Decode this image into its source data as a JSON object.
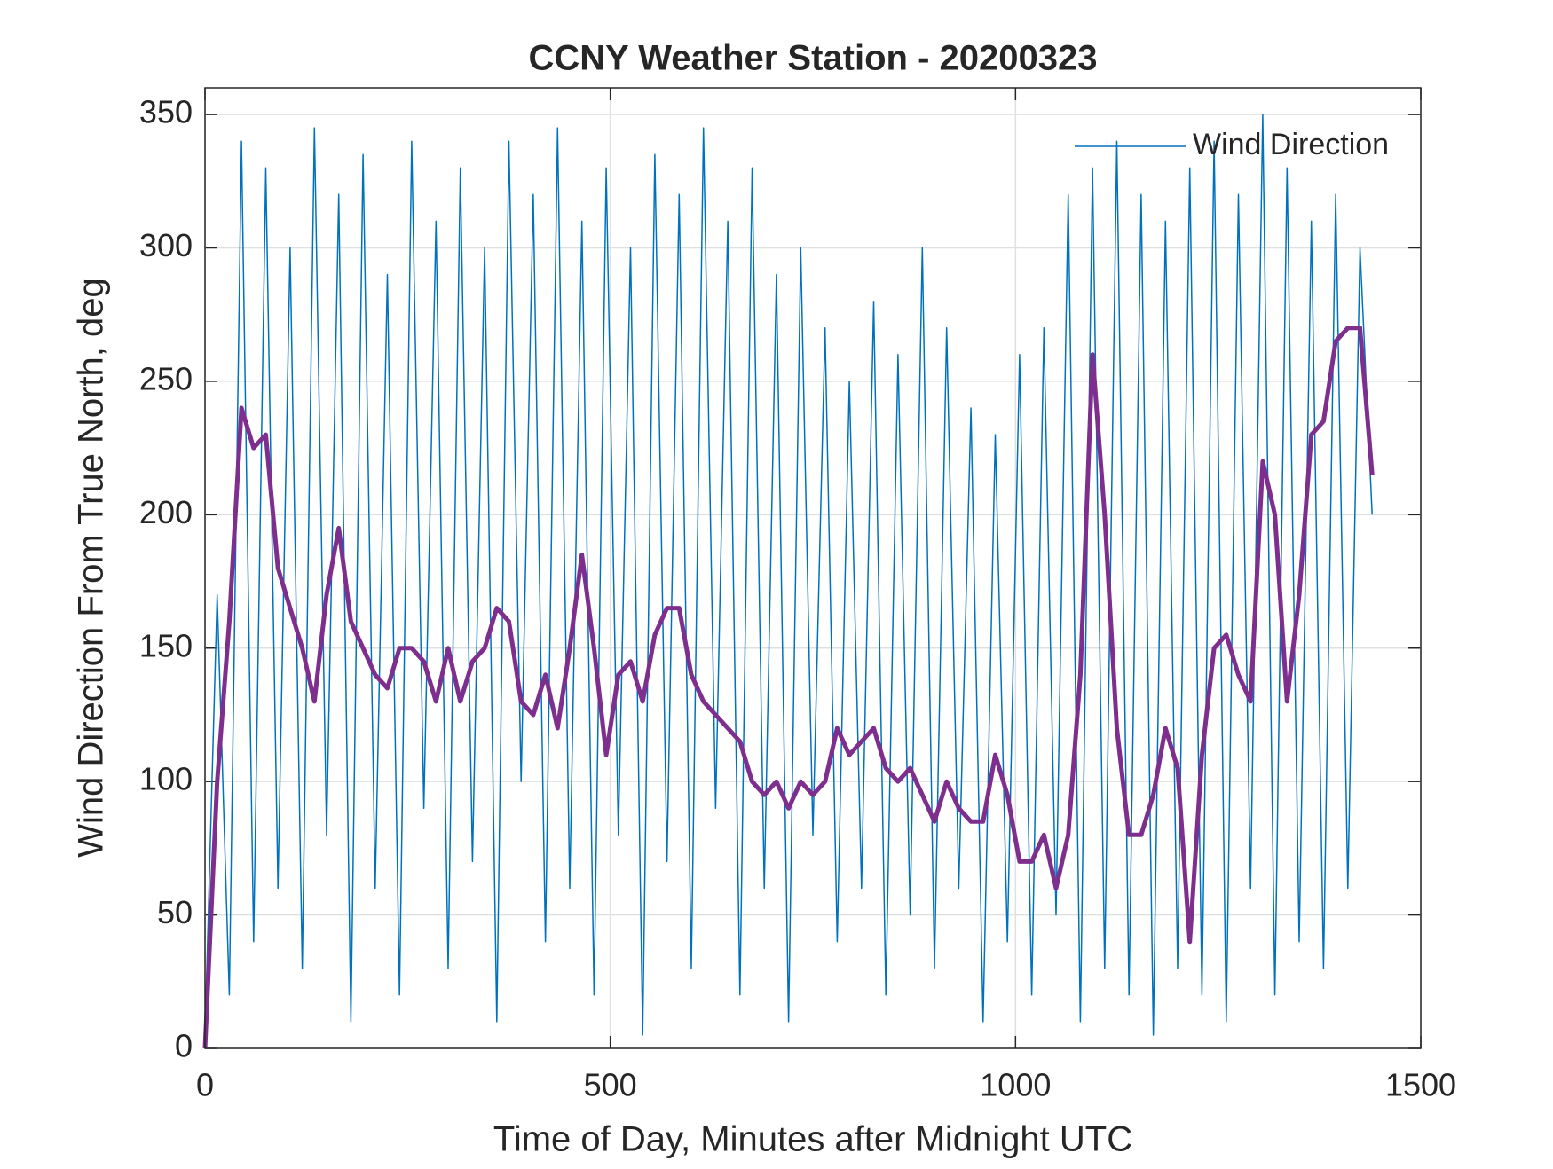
{
  "chart_data": {
    "type": "line",
    "title": "CCNY Weather Station - 20200323",
    "xlabel": "Time of Day, Minutes after Midnight UTC",
    "ylabel": "Wind Direction From True North, deg",
    "x": [
      0,
      15,
      30,
      45,
      60,
      75,
      90,
      105,
      120,
      135,
      150,
      165,
      180,
      195,
      210,
      225,
      240,
      255,
      270,
      285,
      300,
      315,
      330,
      345,
      360,
      375,
      390,
      405,
      420,
      435,
      450,
      465,
      480,
      495,
      510,
      525,
      540,
      555,
      570,
      585,
      600,
      615,
      630,
      645,
      660,
      675,
      690,
      705,
      720,
      735,
      750,
      765,
      780,
      795,
      810,
      825,
      840,
      855,
      870,
      885,
      900,
      915,
      930,
      945,
      960,
      975,
      990,
      1005,
      1020,
      1035,
      1050,
      1065,
      1080,
      1095,
      1110,
      1125,
      1140,
      1155,
      1170,
      1185,
      1200,
      1215,
      1230,
      1245,
      1260,
      1275,
      1290,
      1305,
      1320,
      1335,
      1350,
      1365,
      1380,
      1395,
      1410,
      1425,
      1440
    ],
    "series": [
      {
        "name": "Wind Direction",
        "color": "#0072bd",
        "width": 1.5,
        "values": [
          5,
          170,
          20,
          340,
          40,
          330,
          60,
          300,
          30,
          345,
          80,
          320,
          10,
          335,
          60,
          290,
          20,
          340,
          90,
          310,
          30,
          330,
          70,
          300,
          10,
          340,
          100,
          320,
          40,
          345,
          60,
          310,
          20,
          330,
          80,
          300,
          5,
          335,
          70,
          320,
          30,
          345,
          90,
          310,
          20,
          330,
          60,
          290,
          10,
          300,
          80,
          270,
          40,
          250,
          60,
          280,
          20,
          260,
          50,
          300,
          30,
          270,
          60,
          240,
          10,
          230,
          40,
          260,
          20,
          270,
          50,
          320,
          10,
          330,
          30,
          340,
          20,
          320,
          5,
          310,
          30,
          330,
          20,
          340,
          10,
          320,
          60,
          350,
          20,
          330,
          40,
          310,
          30,
          320,
          60,
          300,
          200
        ]
      },
      {
        "color": "#7e2f8e",
        "width": 5,
        "values": [
          0,
          100,
          160,
          240,
          225,
          230,
          180,
          165,
          150,
          130,
          170,
          195,
          160,
          150,
          140,
          135,
          150,
          150,
          145,
          130,
          150,
          130,
          145,
          150,
          165,
          160,
          130,
          125,
          140,
          120,
          150,
          185,
          150,
          110,
          140,
          145,
          130,
          155,
          165,
          165,
          140,
          130,
          125,
          120,
          115,
          100,
          95,
          100,
          90,
          100,
          95,
          100,
          120,
          110,
          115,
          120,
          105,
          100,
          105,
          95,
          85,
          100,
          90,
          85,
          85,
          110,
          95,
          70,
          70,
          80,
          60,
          80,
          140,
          260,
          200,
          120,
          80,
          80,
          95,
          120,
          105,
          40,
          110,
          150,
          155,
          140,
          130,
          220,
          200,
          130,
          170,
          230,
          235,
          265,
          270,
          270,
          215
        ]
      }
    ],
    "xlim": [
      0,
      1500
    ],
    "xticks": [
      0,
      500,
      1000,
      1500
    ],
    "ylim": [
      0,
      360
    ],
    "yticks": [
      0,
      50,
      100,
      150,
      200,
      250,
      300,
      350
    ],
    "grid": true,
    "legend": "northeast"
  }
}
